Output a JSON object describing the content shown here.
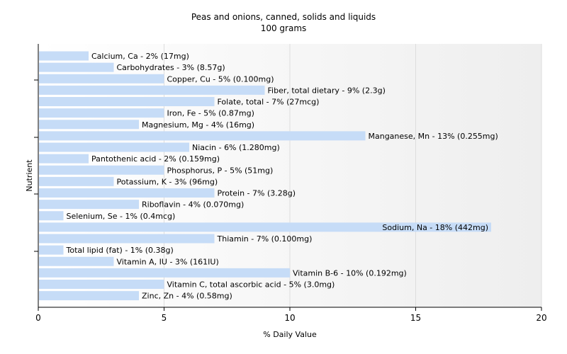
{
  "chart_data": {
    "type": "bar",
    "orientation": "horizontal",
    "title": "Peas and onions, canned, solids and liquids",
    "subtitle": "100 grams",
    "xlabel": "% Daily Value",
    "ylabel": "Nutrient",
    "xlim": [
      0,
      20
    ],
    "xticks": [
      0,
      5,
      10,
      15,
      20
    ],
    "grid": true,
    "bar_color": "#c6dcf7",
    "categories": [
      "Calcium, Ca",
      "Carbohydrates",
      "Copper, Cu",
      "Fiber, total dietary",
      "Folate, total",
      "Iron, Fe",
      "Magnesium, Mg",
      "Manganese, Mn",
      "Niacin",
      "Pantothenic acid",
      "Phosphorus, P",
      "Potassium, K",
      "Protein",
      "Riboflavin",
      "Selenium, Se",
      "Sodium, Na",
      "Thiamin",
      "Total lipid (fat)",
      "Vitamin A, IU",
      "Vitamin B-6",
      "Vitamin C, total ascorbic acid",
      "Zinc, Zn"
    ],
    "values": [
      2,
      3,
      5,
      9,
      7,
      5,
      4,
      13,
      6,
      2,
      5,
      3,
      7,
      4,
      1,
      18,
      7,
      1,
      3,
      10,
      5,
      4
    ],
    "labels": [
      "Calcium, Ca - 2% (17mg)",
      "Carbohydrates - 3% (8.57g)",
      "Copper, Cu - 5% (0.100mg)",
      "Fiber, total dietary - 9% (2.3g)",
      "Folate, total - 7% (27mcg)",
      "Iron, Fe - 5% (0.87mg)",
      "Magnesium, Mg - 4% (16mg)",
      "Manganese, Mn - 13% (0.255mg)",
      "Niacin - 6% (1.280mg)",
      "Pantothenic acid - 2% (0.159mg)",
      "Phosphorus, P - 5% (51mg)",
      "Potassium, K - 3% (96mg)",
      "Protein - 7% (3.28g)",
      "Riboflavin - 4% (0.070mg)",
      "Selenium, Se - 1% (0.4mcg)",
      "Sodium, Na - 18% (442mg)",
      "Thiamin - 7% (0.100mg)",
      "Total lipid (fat) - 1% (0.38g)",
      "Vitamin A, IU - 3% (161IU)",
      "Vitamin B-6 - 10% (0.192mg)",
      "Vitamin C, total ascorbic acid - 5% (3.0mg)",
      "Zinc, Zn - 4% (0.58mg)"
    ]
  }
}
